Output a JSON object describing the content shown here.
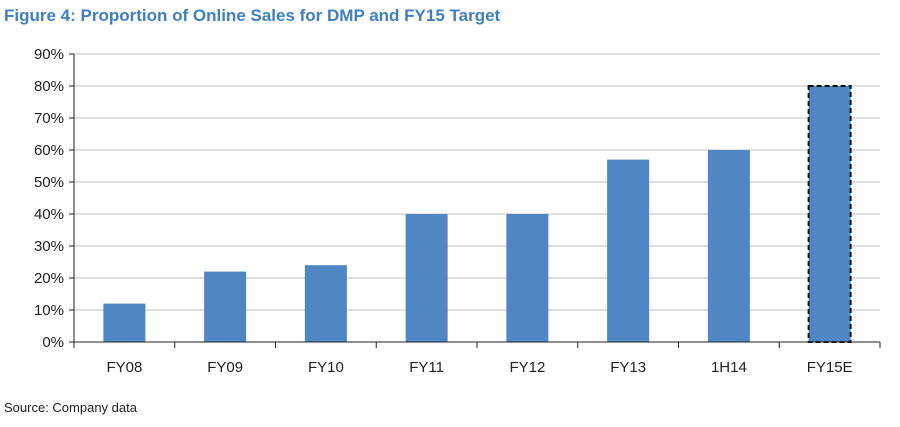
{
  "figure": {
    "title": "Figure 4: Proportion of Online Sales for DMP and FY15 Target",
    "source": "Source: Company data"
  },
  "colors": {
    "title": "#3f7fbf",
    "bar": "#4f87c4",
    "estimate_outline": "#111111",
    "grid": "#bfbfbf"
  },
  "chart_data": {
    "type": "bar",
    "title": "Figure 4: Proportion of Online Sales for DMP and FY15 Target",
    "xlabel": "",
    "ylabel": "",
    "categories": [
      "FY08",
      "FY09",
      "FY10",
      "FY11",
      "FY12",
      "FY13",
      "1H14",
      "FY15E"
    ],
    "values": [
      12,
      22,
      24,
      40,
      40,
      57,
      60,
      80
    ],
    "estimate_category": "FY15E",
    "ylim": [
      0,
      90
    ],
    "yticks": [
      0,
      10,
      20,
      30,
      40,
      50,
      60,
      70,
      80,
      90
    ],
    "ytick_labels": [
      "0%",
      "10%",
      "20%",
      "30%",
      "40%",
      "50%",
      "60%",
      "70%",
      "80%",
      "90%"
    ],
    "grid": true,
    "legend": "none"
  }
}
